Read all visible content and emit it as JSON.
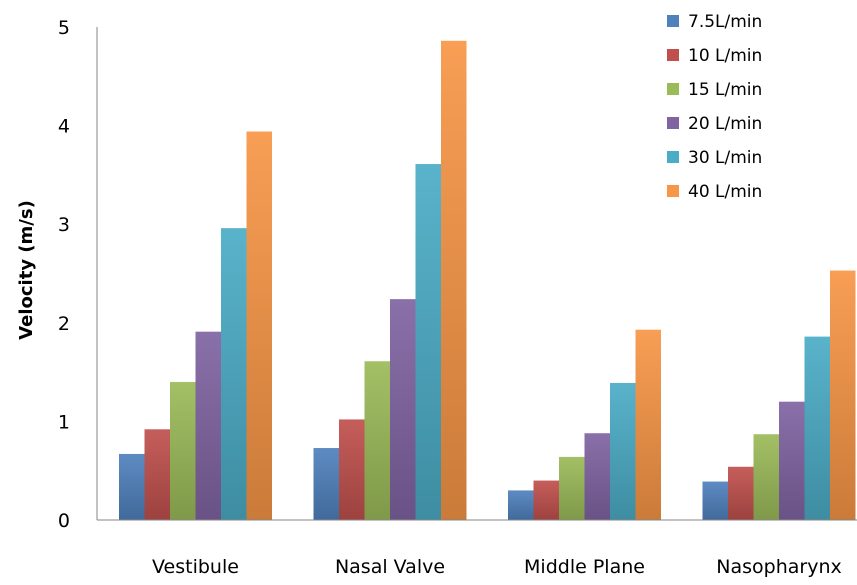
{
  "chart_data": {
    "type": "bar",
    "title": "",
    "xlabel": "",
    "ylabel": "Velocity (m/s)",
    "ylim": [
      0,
      5
    ],
    "yticks": [
      0,
      1,
      2,
      3,
      4,
      5
    ],
    "grid": false,
    "legend_position": "top-right",
    "categories": [
      "Vestibule",
      "Nasal Valve",
      "Middle Plane",
      "Nasopharynx"
    ],
    "series": [
      {
        "name": "7.5L/min",
        "color": "#4F81BD",
        "values": [
          0.67,
          0.73,
          0.3,
          0.39
        ]
      },
      {
        "name": "10 L/min",
        "color": "#C0504D",
        "values": [
          0.92,
          1.02,
          0.4,
          0.54
        ]
      },
      {
        "name": "15 L/min",
        "color": "#9BBB59",
        "values": [
          1.4,
          1.61,
          0.64,
          0.87
        ]
      },
      {
        "name": "20 L/min",
        "color": "#8064A2",
        "values": [
          1.91,
          2.24,
          0.88,
          1.2
        ]
      },
      {
        "name": "30 L/min",
        "color": "#4BACC6",
        "values": [
          2.96,
          3.61,
          1.39,
          1.86
        ]
      },
      {
        "name": "40 L/min",
        "color": "#F79646",
        "values": [
          3.94,
          4.86,
          1.93,
          2.53
        ]
      }
    ]
  }
}
